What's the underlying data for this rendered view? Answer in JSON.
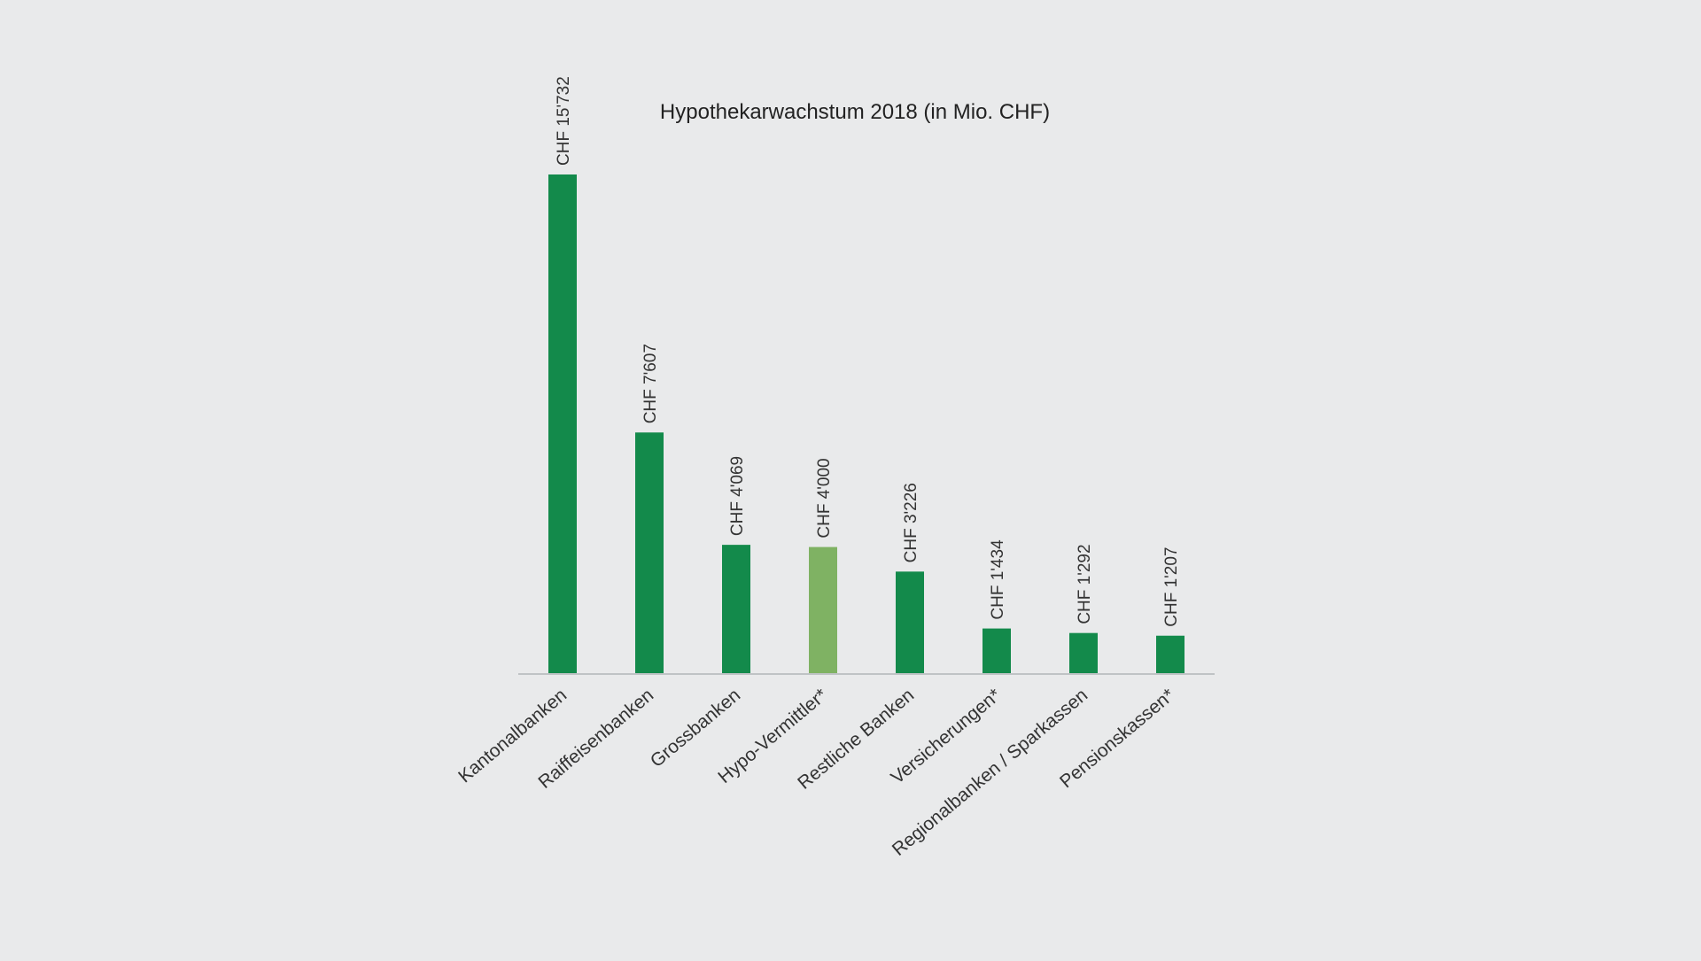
{
  "chart_data": {
    "type": "bar",
    "title": "Hypothekarwachstum 2018 (in Mio. CHF)",
    "xlabel": "",
    "ylabel": "",
    "categories": [
      "Kantonalbanken",
      "Raiffeisenbanken",
      "Grossbanken",
      "Hypo-Vermittler*",
      "Restliche Banken",
      "Versicherungen*",
      "Regionalbanken / Sparkassen",
      "Pensionskassen*"
    ],
    "values": [
      15732,
      7607,
      4069,
      4000,
      3226,
      1434,
      1292,
      1207
    ],
    "value_labels": [
      "CHF 15'732",
      "CHF 7'607",
      "CHF 4'069",
      "CHF 4'000",
      "CHF 3'226",
      "CHF 1'434",
      "CHF 1'292",
      "CHF 1'207"
    ],
    "ylim": [
      0,
      15732
    ],
    "grid": false,
    "colors": {
      "bar": "#138a4b",
      "bar_highlight": "#7fb263",
      "highlight_index": 3,
      "axis": "#bfc3c5",
      "background": "#e9eaeb"
    }
  }
}
